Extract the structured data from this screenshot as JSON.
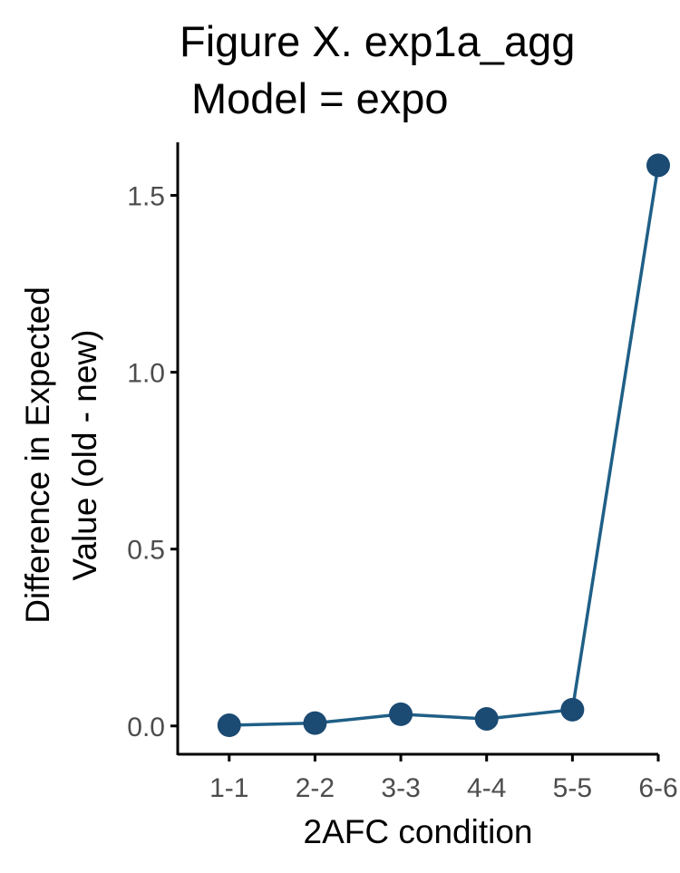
{
  "chart_data": {
    "type": "line",
    "title_lines": [
      "Figure X. exp1a_agg",
      "Model = expo"
    ],
    "xlabel": "2AFC condition",
    "ylabel_lines": [
      "Difference in Expected",
      "Value (old - new)"
    ],
    "categories": [
      "1-1",
      "2-2",
      "3-3",
      "4-4",
      "5-5",
      "6-6"
    ],
    "values": [
      0.002,
      0.008,
      0.033,
      0.02,
      0.046,
      1.585
    ],
    "yticks": [
      "0.0",
      "0.5",
      "1.0",
      "1.5"
    ],
    "ylim": [
      -0.08,
      1.65
    ],
    "grid": false,
    "colors": {
      "series": "#1f5f87",
      "points": "#1b4a73",
      "axis": "#000000",
      "tick_label": "#4d4d4d"
    }
  }
}
